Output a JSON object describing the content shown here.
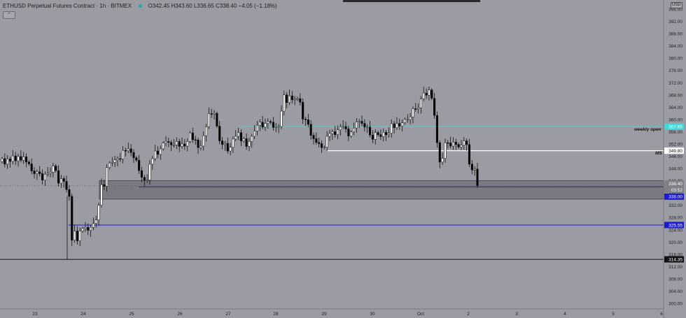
{
  "header": {
    "symbol": "ETHUSD Perpetual Futures Contract · 1h · BITMEX",
    "ohlc": "O342.45 H343.60 L336.65 C338.40 −4.05 (−1.18%)"
  },
  "currency_label": "USD",
  "annotations": {
    "weekly_open": "weekly open",
    "ms": "MS"
  },
  "colors": {
    "background": "#9b9ca3",
    "up_candle": "#ffffff",
    "down_candle": "#000000",
    "weekly_open_line": "#3fd8d8",
    "ms_line": "#ffffff",
    "blue_line": "#1a1ad6",
    "zone_fill": "#6e6f75",
    "low_line": "#111111"
  },
  "chart_data": {
    "type": "candlestick",
    "y_ticks": [
      300.0,
      304.0,
      308.0,
      312.0,
      316.0,
      320.0,
      324.0,
      328.0,
      332.0,
      336.0,
      340.0,
      344.0,
      348.0,
      352.0,
      356.0,
      360.0,
      364.0,
      368.0,
      372.0,
      376.0,
      380.0,
      384.0,
      388.0,
      392.0,
      396.0
    ],
    "x_ticks": [
      "23",
      "24",
      "25",
      "26",
      "27",
      "28",
      "29",
      "30",
      "Oct",
      "2",
      "3",
      "4",
      "5",
      "6"
    ],
    "ylim": [
      300,
      396
    ],
    "levels": [
      {
        "label": "357.65",
        "value": 357.65,
        "kind": "weekly_open"
      },
      {
        "label": "349.80",
        "value": 349.8,
        "kind": "ms"
      },
      {
        "label": "338.40",
        "value": 338.4,
        "kind": "last_price"
      },
      {
        "label": "03:52",
        "kind": "countdown"
      },
      {
        "label": "338.00",
        "value": 338.0,
        "kind": "blue"
      },
      {
        "label": "325.55",
        "value": 325.55,
        "kind": "blue"
      },
      {
        "label": "314.35",
        "value": 314.35,
        "kind": "low"
      }
    ],
    "zone": {
      "from": 334.0,
      "to": 340.0
    },
    "closes": [
      347.2,
      345.4,
      347.1,
      346.3,
      348.1,
      346.5,
      347.9,
      346.7,
      347.8,
      346.1,
      345.5,
      343.2,
      342.3,
      342.9,
      342.3,
      340.2,
      342.1,
      342.4,
      342.8,
      344.8,
      343.3,
      339.2,
      340.7,
      339.8,
      337.1,
      334.9,
      320.6,
      323.6,
      320.4,
      323.6,
      324.4,
      324.8,
      323.8,
      324.8,
      326.1,
      327.2,
      332.0,
      338.7,
      338.2,
      344.3,
      345.8,
      346.0,
      346.8,
      347.2,
      347.1,
      349.9,
      349.8,
      350.4,
      349.2,
      347.5,
      346.7,
      343.3,
      341.1,
      340.2,
      340.2,
      345.4,
      347.2,
      349.7,
      348.6,
      350.4,
      352.3,
      352.8,
      352.5,
      351.7,
      351.7,
      352.8,
      351.2,
      352.0,
      351.3,
      352.8,
      355.6,
      353.4,
      353.3,
      350.8,
      351.3,
      354.7,
      357.6,
      361.9,
      361.7,
      362.0,
      357.8,
      353.0,
      351.8,
      352.2,
      349.7,
      350.9,
      353.6,
      354.5,
      355.7,
      353.0,
      353.7,
      351.2,
      352.8,
      354.5,
      356.2,
      358.1,
      359.1,
      357.5,
      358.7,
      359.3,
      359.1,
      357.4,
      357.6,
      357.7,
      362.7,
      368.0,
      365.5,
      367.7,
      366.4,
      366.6,
      366.8,
      365.6,
      360.1,
      359.9,
      358.4,
      354.8,
      353.7,
      352.5,
      352.1,
      350.8,
      350.9,
      354.5,
      355.4,
      356.0,
      355.0,
      356.6,
      357.6,
      357.7,
      356.9,
      354.6,
      355.9,
      357.2,
      359.2,
      359.4,
      358.7,
      357.5,
      357.5,
      354.9,
      353.5,
      355.7,
      355.0,
      354.4,
      355.8,
      355.0,
      355.5,
      358.6,
      357.3,
      358.7,
      357.8,
      358.9,
      360.0,
      360.0,
      360.8,
      363.5,
      363.4,
      363.8,
      366.7,
      368.6,
      367.9,
      369.6,
      366.9,
      361.3,
      352.4,
      346.1,
      347.3,
      352.4,
      352.3,
      351.3,
      352.6,
      351.8,
      351.0,
      351.6,
      353.0,
      351.8,
      345.4,
      343.5,
      343.8,
      338.4
    ]
  }
}
